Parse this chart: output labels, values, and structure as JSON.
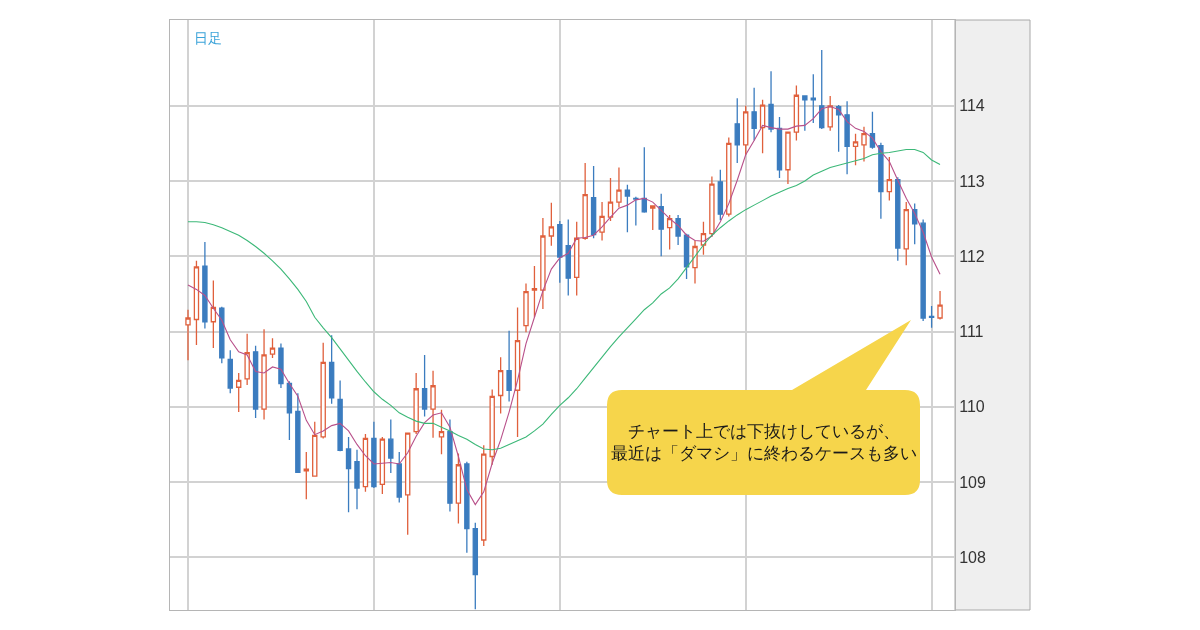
{
  "chart_data": {
    "type": "candlestick",
    "categories": [
      null,
      null,
      null,
      null,
      null,
      null,
      null,
      null,
      null,
      null,
      null,
      null,
      null,
      null,
      null,
      null,
      null,
      null,
      null,
      null,
      null,
      null,
      null,
      null,
      null,
      null,
      null,
      null,
      null,
      null,
      null,
      null,
      null,
      null,
      null,
      null,
      null,
      null,
      null,
      null,
      null,
      null,
      null,
      null,
      null,
      null,
      null,
      null,
      null,
      null,
      null,
      null,
      null,
      null,
      null,
      null,
      null,
      null,
      null,
      null,
      null,
      null,
      null,
      null,
      null,
      null,
      null,
      null,
      null,
      null,
      null,
      null,
      null,
      null,
      null,
      null,
      null,
      null,
      null,
      null,
      null,
      null,
      null,
      null,
      null,
      null,
      null,
      null,
      null,
      null
    ],
    "ohlc": [
      [
        111.09,
        111.29,
        110.62,
        111.18
      ],
      [
        111.16,
        111.94,
        110.82,
        111.86
      ],
      [
        111.87,
        112.19,
        111.04,
        111.13
      ],
      [
        111.13,
        111.68,
        110.78,
        111.32
      ],
      [
        111.31,
        111.33,
        110.58,
        110.65
      ],
      [
        110.63,
        110.75,
        110.18,
        110.25
      ],
      [
        110.26,
        110.45,
        109.93,
        110.35
      ],
      [
        110.37,
        110.97,
        110.29,
        110.72
      ],
      [
        110.73,
        110.81,
        109.85,
        109.97
      ],
      [
        109.97,
        111.03,
        109.83,
        110.69
      ],
      [
        110.7,
        110.91,
        110.65,
        110.78
      ],
      [
        110.78,
        110.84,
        110.25,
        110.31
      ],
      [
        110.31,
        110.34,
        109.56,
        109.92
      ],
      [
        109.94,
        110.18,
        109.12,
        109.13
      ],
      [
        109.15,
        109.4,
        108.77,
        109.17
      ],
      [
        109.08,
        109.8,
        109.07,
        109.62
      ],
      [
        109.6,
        110.85,
        109.58,
        110.59
      ],
      [
        110.59,
        110.95,
        110.04,
        110.12
      ],
      [
        110.1,
        110.35,
        109.41,
        109.42
      ],
      [
        109.44,
        109.6,
        108.6,
        109.18
      ],
      [
        109.27,
        109.43,
        108.64,
        108.92
      ],
      [
        108.94,
        109.64,
        108.87,
        109.58
      ],
      [
        109.58,
        109.8,
        108.92,
        108.94
      ],
      [
        108.97,
        109.6,
        108.84,
        109.57
      ],
      [
        109.57,
        109.83,
        109.12,
        109.32
      ],
      [
        109.24,
        109.4,
        108.73,
        108.8
      ],
      [
        108.83,
        109.66,
        108.3,
        109.65
      ],
      [
        109.67,
        110.45,
        109.64,
        110.24
      ],
      [
        110.24,
        110.69,
        109.87,
        109.97
      ],
      [
        109.97,
        110.48,
        109.59,
        110.28
      ],
      [
        109.6,
        109.96,
        109.37,
        109.67
      ],
      [
        109.67,
        109.83,
        108.61,
        108.72
      ],
      [
        108.72,
        109.38,
        108.45,
        109.23
      ],
      [
        109.24,
        109.27,
        108.06,
        108.38
      ],
      [
        108.38,
        108.46,
        107.31,
        107.77
      ],
      [
        108.23,
        109.49,
        108.15,
        109.37
      ],
      [
        109.34,
        110.23,
        109.23,
        110.14
      ],
      [
        110.15,
        110.66,
        109.91,
        110.48
      ],
      [
        110.48,
        111.01,
        110.07,
        110.22
      ],
      [
        110.22,
        111.32,
        109.6,
        110.88
      ],
      [
        111.08,
        111.64,
        110.99,
        111.53
      ],
      [
        111.55,
        111.87,
        111.19,
        111.57
      ],
      [
        111.55,
        112.51,
        111.3,
        112.27
      ],
      [
        112.27,
        112.71,
        112.14,
        112.39
      ],
      [
        112.42,
        112.47,
        111.65,
        111.99
      ],
      [
        112.14,
        112.49,
        111.48,
        111.71
      ],
      [
        111.72,
        112.46,
        111.48,
        112.24
      ],
      [
        112.24,
        113.24,
        112.22,
        112.82
      ],
      [
        112.78,
        113.2,
        112.24,
        112.29
      ],
      [
        112.32,
        112.72,
        112.21,
        112.53
      ],
      [
        112.52,
        113.04,
        112.47,
        112.72
      ],
      [
        112.72,
        113.18,
        112.65,
        112.88
      ],
      [
        112.88,
        112.95,
        112.32,
        112.8
      ],
      [
        112.77,
        112.79,
        112.41,
        112.76
      ],
      [
        112.77,
        113.45,
        112.58,
        112.59
      ],
      [
        112.64,
        112.68,
        112.35,
        112.67
      ],
      [
        112.66,
        112.83,
        112.0,
        112.36
      ],
      [
        112.38,
        112.55,
        112.09,
        112.5
      ],
      [
        112.5,
        112.55,
        112.15,
        112.27
      ],
      [
        112.28,
        112.3,
        111.7,
        111.86
      ],
      [
        111.85,
        112.21,
        111.64,
        112.13
      ],
      [
        112.15,
        112.46,
        112.02,
        112.3
      ],
      [
        112.3,
        113.06,
        112.26,
        112.96
      ],
      [
        112.99,
        113.15,
        112.48,
        112.56
      ],
      [
        112.56,
        113.58,
        112.53,
        113.5
      ],
      [
        113.76,
        114.1,
        113.24,
        113.48
      ],
      [
        113.48,
        114.0,
        113.35,
        113.92
      ],
      [
        113.92,
        114.24,
        113.54,
        113.7
      ],
      [
        113.71,
        114.08,
        113.37,
        114.01
      ],
      [
        114.02,
        114.46,
        113.65,
        113.69
      ],
      [
        113.7,
        113.85,
        113.04,
        113.15
      ],
      [
        113.15,
        113.65,
        112.96,
        113.65
      ],
      [
        113.65,
        114.27,
        113.54,
        114.14
      ],
      [
        114.13,
        114.14,
        113.67,
        114.08
      ],
      [
        114.1,
        114.42,
        113.77,
        114.08
      ],
      [
        114.0,
        114.74,
        113.69,
        113.71
      ],
      [
        113.72,
        114.13,
        113.67,
        114.0
      ],
      [
        113.99,
        114.01,
        113.39,
        113.88
      ],
      [
        113.88,
        114.06,
        113.09,
        113.46
      ],
      [
        113.46,
        113.63,
        113.21,
        113.52
      ],
      [
        113.48,
        113.72,
        113.26,
        113.63
      ],
      [
        113.63,
        113.92,
        113.43,
        113.45
      ],
      [
        113.47,
        113.51,
        112.5,
        112.86
      ],
      [
        112.86,
        113.32,
        112.74,
        113.02
      ],
      [
        113.02,
        113.05,
        111.94,
        112.11
      ],
      [
        112.1,
        112.72,
        111.88,
        112.62
      ],
      [
        112.62,
        112.7,
        112.16,
        112.43
      ],
      [
        112.44,
        112.49,
        111.14,
        111.18
      ],
      [
        111.2,
        111.34,
        111.05,
        111.19
      ],
      [
        111.18,
        111.54,
        111.16,
        111.35
      ]
    ],
    "colors": [
      "#e0603c",
      "#e0603c",
      "#3b7cbf",
      "#e0603c",
      "#3b7cbf",
      "#3b7cbf",
      "#e0603c",
      "#e0603c",
      "#3b7cbf",
      "#e0603c",
      "#e0603c",
      "#3b7cbf",
      "#3b7cbf",
      "#3b7cbf",
      "#e0603c",
      "#e0603c",
      "#e0603c",
      "#3b7cbf",
      "#3b7cbf",
      "#3b7cbf",
      "#3b7cbf",
      "#e0603c",
      "#3b7cbf",
      "#e0603c",
      "#3b7cbf",
      "#3b7cbf",
      "#e0603c",
      "#e0603c",
      "#3b7cbf",
      "#e0603c",
      "#e0603c",
      "#3b7cbf",
      "#e0603c",
      "#3b7cbf",
      "#3b7cbf",
      "#e0603c",
      "#e0603c",
      "#e0603c",
      "#3b7cbf",
      "#e0603c",
      "#e0603c",
      "#e0603c",
      "#e0603c",
      "#e0603c",
      "#3b7cbf",
      "#3b7cbf",
      "#e0603c",
      "#e0603c",
      "#3b7cbf",
      "#e0603c",
      "#e0603c",
      "#e0603c",
      "#3b7cbf",
      "#3b7cbf",
      "#3b7cbf",
      "#e0603c",
      "#3b7cbf",
      "#e0603c",
      "#3b7cbf",
      "#3b7cbf",
      "#e0603c",
      "#e0603c",
      "#e0603c",
      "#3b7cbf",
      "#e0603c",
      "#3b7cbf",
      "#e0603c",
      "#3b7cbf",
      "#e0603c",
      "#3b7cbf",
      "#3b7cbf",
      "#e0603c",
      "#e0603c",
      "#3b7cbf",
      "#3b7cbf",
      "#3b7cbf",
      "#e0603c",
      "#3b7cbf",
      "#3b7cbf",
      "#e0603c",
      "#e0603c",
      "#3b7cbf",
      "#3b7cbf",
      "#e0603c",
      "#3b7cbf",
      "#e0603c",
      "#3b7cbf",
      "#3b7cbf",
      "#3b7cbf",
      "#e0603c"
    ],
    "series": [
      {
        "type": "line",
        "color": "#b8508a",
        "values": [
          111.62,
          111.56,
          111.48,
          111.31,
          111.15,
          110.89,
          110.73,
          110.69,
          110.47,
          110.45,
          110.53,
          110.5,
          110.31,
          110.14,
          109.82,
          109.63,
          109.68,
          109.75,
          109.78,
          109.68,
          109.5,
          109.35,
          109.24,
          109.25,
          109.26,
          109.24,
          109.39,
          109.61,
          109.79,
          109.89,
          109.92,
          109.73,
          109.34,
          108.9,
          108.7,
          108.87,
          109.25,
          109.56,
          109.93,
          110.35,
          110.84,
          111.19,
          111.54,
          111.83,
          111.98,
          112.04,
          112.24,
          112.25,
          112.28,
          112.39,
          112.52,
          112.64,
          112.68,
          112.75,
          112.77,
          112.72,
          112.61,
          112.5,
          112.41,
          112.28,
          112.21,
          112.2,
          112.27,
          112.46,
          112.7,
          113.01,
          113.35,
          113.54,
          113.74,
          113.71,
          113.69,
          113.69,
          113.73,
          113.74,
          113.83,
          113.96,
          113.99,
          113.95,
          113.79,
          113.7,
          113.66,
          113.57,
          113.39,
          113.26,
          113.01,
          112.77,
          112.57,
          112.32,
          111.99,
          111.76
        ]
      },
      {
        "type": "line",
        "color": "#3cb878",
        "values": [
          112.46,
          112.46,
          112.45,
          112.42,
          112.38,
          112.33,
          112.28,
          112.21,
          112.13,
          112.04,
          111.94,
          111.83,
          111.7,
          111.56,
          111.4,
          111.19,
          111.05,
          110.92,
          110.77,
          110.62,
          110.47,
          110.33,
          110.2,
          110.1,
          110.02,
          109.92,
          109.86,
          109.81,
          109.78,
          109.78,
          109.73,
          109.68,
          109.62,
          109.57,
          109.5,
          109.44,
          109.43,
          109.45,
          109.5,
          109.55,
          109.6,
          109.68,
          109.77,
          109.9,
          110.02,
          110.12,
          110.24,
          110.38,
          110.52,
          110.66,
          110.8,
          110.93,
          111.05,
          111.17,
          111.29,
          111.38,
          111.5,
          111.58,
          111.7,
          111.85,
          112.0,
          112.15,
          112.28,
          112.38,
          112.47,
          112.55,
          112.62,
          112.68,
          112.74,
          112.8,
          112.85,
          112.9,
          112.94,
          113.0,
          113.08,
          113.13,
          113.18,
          113.21,
          113.24,
          113.27,
          113.3,
          113.35,
          113.37,
          113.38,
          113.4,
          113.42,
          113.42,
          113.38,
          113.28,
          113.22
        ]
      }
    ],
    "ylim": [
      107.3,
      115.14
    ],
    "yticks": [
      108,
      109,
      110,
      111,
      112,
      113,
      114
    ],
    "grid": true,
    "annotations": [
      "日足",
      "チャート上では下抜けしているが、最近は「ダマシ」に終わるケースも多い"
    ]
  }
}
